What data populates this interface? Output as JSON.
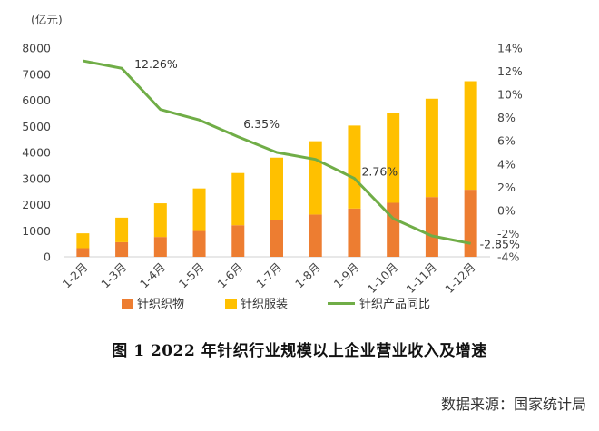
{
  "chart_data": {
    "type": "bar",
    "categories": [
      "1-2月",
      "1-3月",
      "1-4月",
      "1-5月",
      "1-6月",
      "1-7月",
      "1-8月",
      "1-9月",
      "1-10月",
      "1-11月",
      "1-12月"
    ],
    "series": [
      {
        "name": "针织织物",
        "type": "bar",
        "stacked": true,
        "axis": "left",
        "color": "#ED7D31",
        "values": [
          330,
          560,
          760,
          990,
          1210,
          1400,
          1620,
          1850,
          2070,
          2290,
          2570
        ]
      },
      {
        "name": "针织服装",
        "type": "bar",
        "stacked": true,
        "axis": "left",
        "color": "#FFC000",
        "values": [
          570,
          940,
          1290,
          1630,
          2000,
          2400,
          2810,
          3180,
          3430,
          3770,
          4160
        ]
      },
      {
        "name": "针织产品同比",
        "type": "line",
        "axis": "right",
        "color": "#70AD47",
        "values": [
          12.9,
          12.26,
          8.7,
          7.8,
          6.35,
          5.0,
          4.4,
          2.76,
          -0.7,
          -2.2,
          -2.85
        ]
      }
    ],
    "data_labels": [
      {
        "series": 2,
        "index": 1,
        "text": "12.26%"
      },
      {
        "series": 2,
        "index": 4,
        "text": "6.35%"
      },
      {
        "series": 2,
        "index": 7,
        "text": "2.76%"
      },
      {
        "series": 2,
        "index": 10,
        "text": "-2.85%"
      }
    ],
    "y_left": {
      "unit_label": "(亿元)",
      "ylim": [
        0,
        8000
      ],
      "ticks": [
        "0",
        "1000",
        "2000",
        "3000",
        "4000",
        "5000",
        "6000",
        "7000",
        "8000"
      ]
    },
    "y_right": {
      "ylim": [
        -4,
        14
      ],
      "ticks": [
        "-4%",
        "-2%",
        "0%",
        "2%",
        "4%",
        "6%",
        "8%",
        "10%",
        "12%",
        "14%"
      ]
    },
    "legend_position": "bottom",
    "grid": false
  },
  "caption": "图 1   2022 年针织行业规模以上企业营业收入及增速",
  "source": "数据来源：国家统计局"
}
